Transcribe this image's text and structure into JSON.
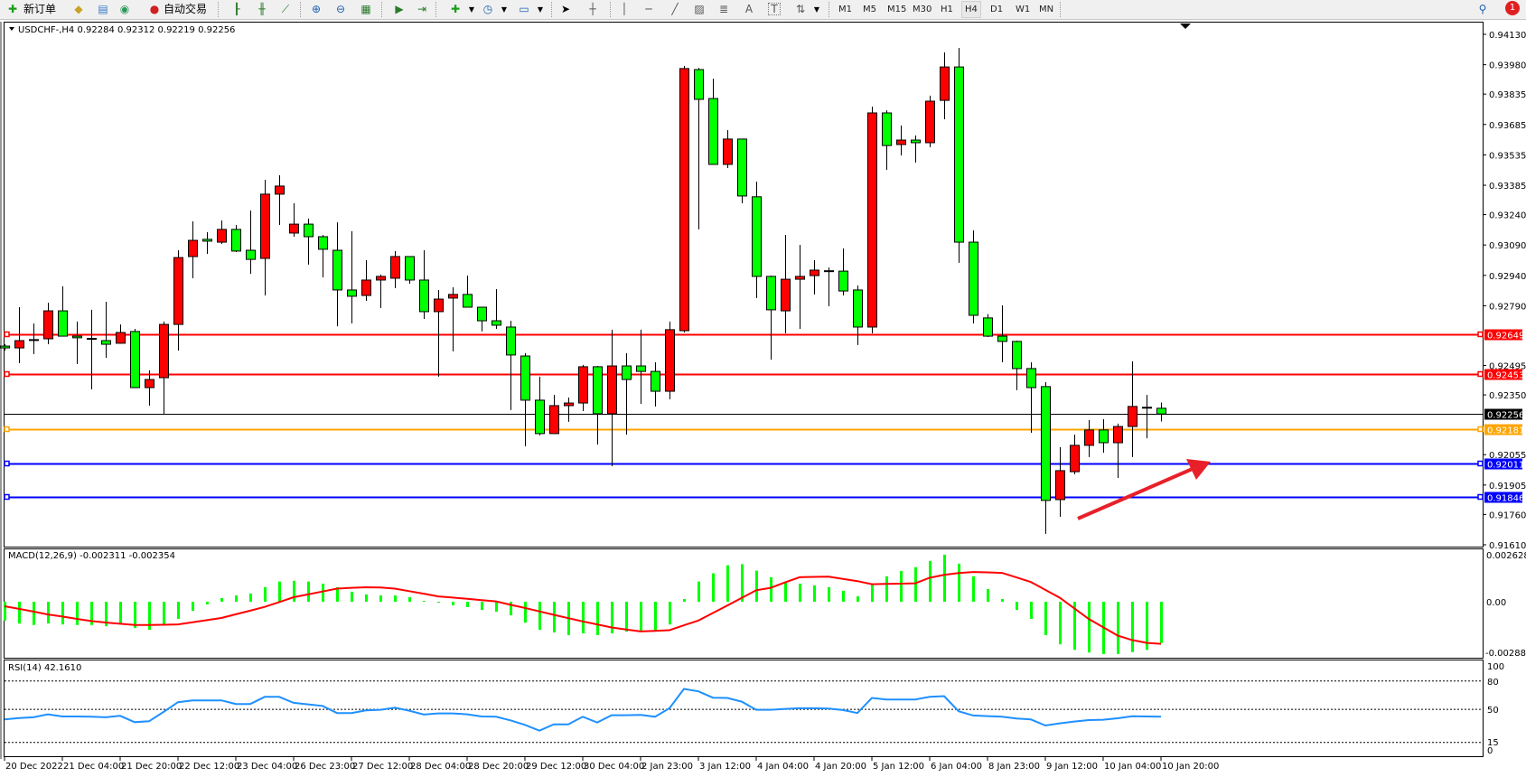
{
  "toolbar": {
    "new_order": "新订单",
    "auto_trading": "自动交易",
    "timeframes": [
      "M1",
      "M5",
      "M15",
      "M30",
      "H1",
      "H4",
      "D1",
      "W1",
      "MN"
    ],
    "active_timeframe": "H4",
    "notification_count": "1",
    "icons": [
      "new-order-icon",
      "market-watch-icon",
      "data-window-icon",
      "signals-icon",
      "auto-trading-icon",
      "bar-chart-icon",
      "candlestick-icon",
      "line-chart-icon",
      "zoom-in-icon",
      "zoom-out-icon",
      "tile-windows-icon",
      "autoscroll-icon",
      "chart-shift-icon",
      "indicators-icon",
      "periods-icon",
      "templates-icon",
      "cursor-icon",
      "crosshair-icon",
      "vertical-line-icon",
      "horizontal-line-icon",
      "trendline-icon",
      "equidistant-channel-icon",
      "fibonacci-icon",
      "text-icon",
      "text-label-icon",
      "arrows-icon",
      "search-icon",
      "notification-icon"
    ]
  },
  "chart": {
    "header": "USDCHF-,H4  0.92284 0.92312 0.92219 0.92256",
    "symbol": "USDCHF-",
    "timeframe": "H4",
    "colors": {
      "up": "#ff0000",
      "down": "#00ff00",
      "macd_hist": "#00ff00",
      "signal": "#ff0000",
      "rsi": "#1e90ff"
    },
    "price_axis": [
      "0.94130",
      "0.93980",
      "0.93835",
      "0.93685",
      "0.93535",
      "0.93385",
      "0.93240",
      "0.93090",
      "0.92940",
      "0.92790",
      "0.92495",
      "0.92350",
      "0.92055",
      "0.91905",
      "0.91760",
      "0.91610"
    ],
    "price_range": [
      0.9161,
      0.9413
    ],
    "levels": [
      {
        "price": "0.92649",
        "color": "#ff0000"
      },
      {
        "price": "0.92453",
        "color": "#ff0000"
      },
      {
        "price": "0.92256",
        "color": "#000000"
      },
      {
        "price": "0.92181",
        "color": "#ffa500"
      },
      {
        "price": "0.92011",
        "color": "#0000ff"
      },
      {
        "price": "0.91846",
        "color": "#0000ff"
      }
    ],
    "time_labels": [
      {
        "bar": 0,
        "label": "20 Dec 2022"
      },
      {
        "bar": 4,
        "label": "21 Dec 04:00"
      },
      {
        "bar": 8,
        "label": "21 Dec 20:00"
      },
      {
        "bar": 12,
        "label": "22 Dec 12:00"
      },
      {
        "bar": 16,
        "label": "23 Dec 04:00"
      },
      {
        "bar": 20,
        "label": "26 Dec 23:00"
      },
      {
        "bar": 24,
        "label": "27 Dec 12:00"
      },
      {
        "bar": 28,
        "label": "28 Dec 04:00"
      },
      {
        "bar": 32,
        "label": "28 Dec 20:00"
      },
      {
        "bar": 36,
        "label": "29 Dec 12:00"
      },
      {
        "bar": 40,
        "label": "30 Dec 04:00"
      },
      {
        "bar": 44,
        "label": "2 Jan 23:00"
      },
      {
        "bar": 48,
        "label": "3 Jan 12:00"
      },
      {
        "bar": 52,
        "label": "4 Jan 04:00"
      },
      {
        "bar": 56,
        "label": "4 Jan 20:00"
      },
      {
        "bar": 60,
        "label": "5 Jan 12:00"
      },
      {
        "bar": 64,
        "label": "6 Jan 04:00"
      },
      {
        "bar": 68,
        "label": "8 Jan 23:00"
      },
      {
        "bar": 72,
        "label": "9 Jan 12:00"
      },
      {
        "bar": 76,
        "label": "10 Jan 04:00"
      },
      {
        "bar": 80,
        "label": "10 Jan 20:00"
      }
    ],
    "ohlc": [
      [
        0.92591,
        0.926,
        0.92569,
        0.92582
      ],
      [
        0.92582,
        0.92783,
        0.92507,
        0.92618
      ],
      [
        0.92621,
        0.92703,
        0.92551,
        0.92623
      ],
      [
        0.92627,
        0.92805,
        0.926,
        0.92765
      ],
      [
        0.92765,
        0.92886,
        0.92638,
        0.9264
      ],
      [
        0.9264,
        0.92712,
        0.92502,
        0.92632
      ],
      [
        0.92629,
        0.9277,
        0.92377,
        0.92627
      ],
      [
        0.92618,
        0.9281,
        0.92533,
        0.926
      ],
      [
        0.92605,
        0.92698,
        0.92603,
        0.92658
      ],
      [
        0.92663,
        0.92676,
        0.92384,
        0.92386
      ],
      [
        0.92386,
        0.92471,
        0.92297,
        0.92426
      ],
      [
        0.92435,
        0.92712,
        0.92257,
        0.92698
      ],
      [
        0.92698,
        0.93064,
        0.92569,
        0.93028
      ],
      [
        0.93033,
        0.93207,
        0.92926,
        0.93113
      ],
      [
        0.93118,
        0.93153,
        0.93046,
        0.93109
      ],
      [
        0.93104,
        0.93211,
        0.93095,
        0.93167
      ],
      [
        0.93167,
        0.93189,
        0.93055,
        0.9306
      ],
      [
        0.93064,
        0.9326,
        0.92948,
        0.93019
      ],
      [
        0.93024,
        0.93412,
        0.92841,
        0.93341
      ],
      [
        0.93341,
        0.93434,
        0.93189,
        0.93381
      ],
      [
        0.93149,
        0.93296,
        0.93131,
        0.93193
      ],
      [
        0.93193,
        0.9322,
        0.92993,
        0.93131
      ],
      [
        0.93131,
        0.9314,
        0.9293,
        0.93069
      ],
      [
        0.93064,
        0.93202,
        0.92689,
        0.92868
      ],
      [
        0.92868,
        0.93158,
        0.92703,
        0.92837
      ],
      [
        0.92841,
        0.93015,
        0.92814,
        0.92917
      ],
      [
        0.92917,
        0.92944,
        0.92779,
        0.92935
      ],
      [
        0.92926,
        0.9306,
        0.92877,
        0.93033
      ],
      [
        0.93033,
        0.93035,
        0.92899,
        0.92917
      ],
      [
        0.92917,
        0.93064,
        0.92725,
        0.92761
      ],
      [
        0.92761,
        0.92868,
        0.9244,
        0.92823
      ],
      [
        0.92828,
        0.92881,
        0.92565,
        0.92846
      ],
      [
        0.92846,
        0.92939,
        0.92781,
        0.92783
      ],
      [
        0.92783,
        0.92785,
        0.92663,
        0.92716
      ],
      [
        0.92716,
        0.92872,
        0.92676,
        0.92694
      ],
      [
        0.92685,
        0.92716,
        0.92275,
        0.92547
      ],
      [
        0.92542,
        0.92556,
        0.92096,
        0.92324
      ],
      [
        0.92324,
        0.9244,
        0.9215,
        0.92159
      ],
      [
        0.92159,
        0.9235,
        0.92157,
        0.92297
      ],
      [
        0.92297,
        0.92337,
        0.92217,
        0.9231
      ],
      [
        0.9231,
        0.92498,
        0.9227,
        0.92489
      ],
      [
        0.92489,
        0.92493,
        0.92105,
        0.92257
      ],
      [
        0.92257,
        0.92672,
        0.91998,
        0.92493
      ],
      [
        0.92493,
        0.92556,
        0.92154,
        0.92426
      ],
      [
        0.92493,
        0.92672,
        0.92306,
        0.92466
      ],
      [
        0.92466,
        0.92511,
        0.92293,
        0.92368
      ],
      [
        0.92368,
        0.92712,
        0.92328,
        0.92672
      ],
      [
        0.92667,
        0.93974,
        0.92658,
        0.93961
      ],
      [
        0.93956,
        0.93965,
        0.93167,
        0.93809
      ],
      [
        0.93813,
        0.93911,
        0.93486,
        0.93488
      ],
      [
        0.93488,
        0.93657,
        0.9347,
        0.93613
      ],
      [
        0.93613,
        0.93615,
        0.93296,
        0.93332
      ],
      [
        0.93328,
        0.93403,
        0.92828,
        0.92935
      ],
      [
        0.92935,
        0.92939,
        0.92524,
        0.9277
      ],
      [
        0.92765,
        0.9314,
        0.92654,
        0.92921
      ],
      [
        0.92921,
        0.93091,
        0.92676,
        0.92935
      ],
      [
        0.92939,
        0.93015,
        0.92846,
        0.92966
      ],
      [
        0.92961,
        0.92979,
        0.92788,
        0.92963
      ],
      [
        0.92961,
        0.93073,
        0.92841,
        0.92863
      ],
      [
        0.92868,
        0.9289,
        0.92596,
        0.92685
      ],
      [
        0.92685,
        0.93773,
        0.92654,
        0.93742
      ],
      [
        0.93742,
        0.93755,
        0.93461,
        0.93581
      ],
      [
        0.93586,
        0.9368,
        0.93532,
        0.93608
      ],
      [
        0.93608,
        0.93631,
        0.93497,
        0.93595
      ],
      [
        0.93595,
        0.93827,
        0.93573,
        0.938
      ],
      [
        0.93804,
        0.94041,
        0.93711,
        0.93969
      ],
      [
        0.93969,
        0.94063,
        0.93002,
        0.93104
      ],
      [
        0.93104,
        0.93162,
        0.92703,
        0.92743
      ],
      [
        0.9273,
        0.92749,
        0.92636,
        0.9264
      ],
      [
        0.9264,
        0.92792,
        0.92511,
        0.92614
      ],
      [
        0.92614,
        0.92618,
        0.92373,
        0.9248
      ],
      [
        0.9248,
        0.92511,
        0.92163,
        0.92386
      ],
      [
        0.92391,
        0.92413,
        0.91664,
        0.91829
      ],
      [
        0.91833,
        0.92092,
        0.91748,
        0.91976
      ],
      [
        0.91971,
        0.92154,
        0.91958,
        0.92101
      ],
      [
        0.92101,
        0.92226,
        0.92043,
        0.92177
      ],
      [
        0.92177,
        0.9223,
        0.92065,
        0.92114
      ],
      [
        0.92114,
        0.92208,
        0.9194,
        0.92194
      ],
      [
        0.92194,
        0.92516,
        0.92043,
        0.92293
      ],
      [
        0.92289,
        0.9235,
        0.92136,
        0.92288
      ],
      [
        0.92284,
        0.92312,
        0.92219,
        0.92256
      ]
    ]
  },
  "macd": {
    "label": "MACD(12,26,9) -0.002311 -0.002354",
    "axis": {
      "max": "0.002628",
      "zero": "0.00",
      "min": "-0.002881"
    },
    "range": [
      -0.002881,
      0.002628
    ],
    "histogram": [
      -0.00105,
      -0.00122,
      -0.0013,
      -0.00122,
      -0.00127,
      -0.0013,
      -0.0013,
      -0.00137,
      -0.00122,
      -0.00147,
      -0.00157,
      -0.00127,
      -0.00096,
      -0.00051,
      -0.00015,
      0.0002,
      0.00035,
      0.00046,
      0.00081,
      0.00113,
      0.00117,
      0.00113,
      0.00101,
      0.00081,
      0.00056,
      0.00041,
      0.00035,
      0.00035,
      0.00025,
      5e-05,
      -5e-05,
      -0.0002,
      -0.0003,
      -0.00046,
      -0.00056,
      -0.00076,
      -0.00117,
      -0.00157,
      -0.00172,
      -0.00187,
      -0.00177,
      -0.00187,
      -0.00177,
      -0.00167,
      -0.00167,
      -0.00162,
      -0.00127,
      0.00015,
      0.00113,
      0.00159,
      0.00204,
      0.0021,
      0.00174,
      0.00137,
      0.00106,
      0.00101,
      0.00091,
      0.00081,
      0.00061,
      0.0003,
      0.00096,
      0.00142,
      0.00172,
      0.00193,
      0.00228,
      0.00263,
      0.00213,
      0.00142,
      0.00071,
      0.00015,
      -0.00046,
      -0.00096,
      -0.00187,
      -0.00238,
      -0.00269,
      -0.00284,
      -0.00292,
      -0.00292,
      -0.00282,
      -0.00269,
      -0.002311
    ],
    "signal": [
      -0.00025,
      -0.0004,
      -0.00055,
      -0.00071,
      -0.00083,
      -0.00096,
      -0.00108,
      -0.00116,
      -0.00123,
      -0.0013,
      -0.0013,
      -0.00129,
      -0.00127,
      -0.00115,
      -0.00103,
      -0.00091,
      -0.0007,
      -0.0005,
      -0.00029,
      -2e-05,
      0.00025,
      0.00041,
      0.00057,
      0.00073,
      0.00078,
      0.00081,
      0.0008,
      0.00073,
      0.00059,
      0.00045,
      0.0003,
      0.00023,
      0.00016,
      9e-05,
      2e-05,
      -0.00017,
      -0.00035,
      -0.00054,
      -0.00073,
      -0.00092,
      -0.0011,
      -0.00127,
      -0.00144,
      -0.00155,
      -0.00166,
      -0.00163,
      -0.00159,
      -0.00132,
      -0.00105,
      -0.00063,
      -0.00021,
      0.00021,
      0.00064,
      0.00078,
      0.00108,
      0.00137,
      0.00139,
      0.0014,
      0.00128,
      0.00115,
      0.00098,
      0.001,
      0.00101,
      0.00103,
      0.00134,
      0.0015,
      0.0016,
      0.00166,
      0.00164,
      0.00161,
      0.00136,
      0.0011,
      0.00066,
      0.00022,
      -0.00037,
      -0.00096,
      -0.00143,
      -0.00189,
      -0.00214,
      -0.0023,
      -0.002354
    ]
  },
  "rsi": {
    "label": "RSI(14) 42.1610",
    "axis": [
      "100",
      "80",
      "50",
      "15",
      "0"
    ],
    "levels": [
      80,
      50,
      15
    ],
    "values": [
      39.3,
      40.9,
      41.6,
      44.8,
      42.5,
      42.5,
      42.2,
      41.6,
      43.2,
      36.5,
      37.4,
      47.3,
      57.6,
      59.5,
      59.5,
      59.5,
      55.7,
      55.7,
      63.3,
      63.3,
      56.9,
      55.3,
      53.7,
      46.1,
      46.1,
      48.9,
      49.6,
      51.8,
      48.6,
      44.5,
      45.7,
      45.7,
      44.8,
      42.5,
      42.2,
      38.4,
      33.6,
      27.5,
      34.2,
      34.2,
      42.2,
      36.1,
      43.8,
      43.8,
      44.1,
      42.2,
      51.2,
      71.7,
      69.1,
      62.4,
      62.1,
      58.2,
      49.6,
      49.6,
      50.5,
      51.2,
      51.2,
      50.9,
      49.3,
      46.1,
      62.1,
      60.5,
      60.5,
      60.5,
      63.3,
      64.0,
      48.0,
      43.5,
      42.9,
      42.2,
      40.3,
      39.3,
      32.9,
      35.2,
      37.1,
      38.7,
      39.0,
      40.6,
      42.8,
      42.5,
      42.161
    ]
  }
}
